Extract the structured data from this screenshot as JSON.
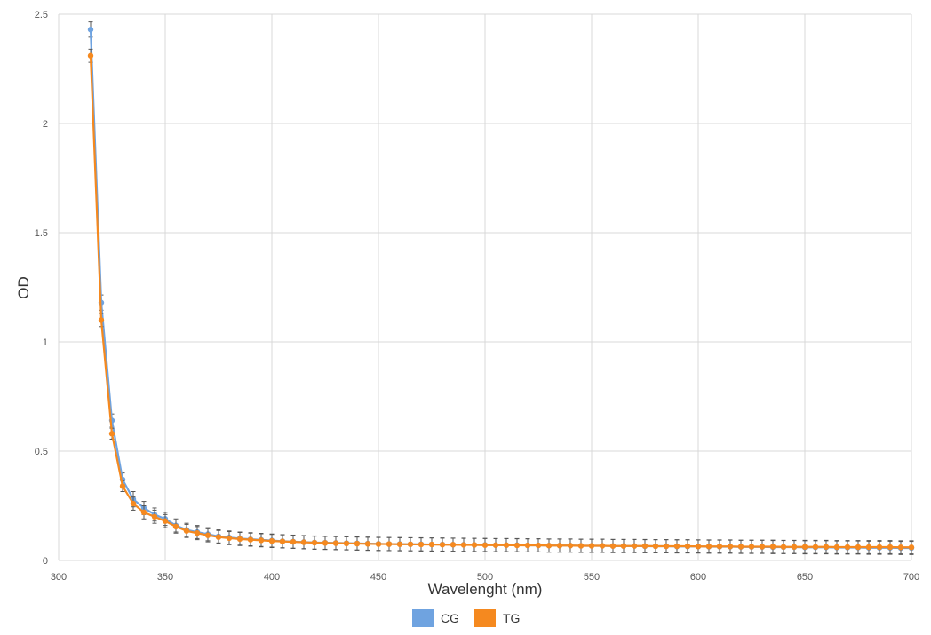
{
  "chart_data": {
    "type": "line",
    "title": "",
    "xlabel": "Wavelenght (nm)",
    "ylabel": "OD",
    "xlim": [
      300,
      700
    ],
    "ylim": [
      0,
      2.5
    ],
    "x_ticks": [
      "300",
      "350",
      "400",
      "450",
      "500",
      "550",
      "600",
      "650",
      "700"
    ],
    "y_ticks": [
      "0",
      "0.5",
      "1",
      "1.5",
      "2",
      "2.5"
    ],
    "grid": true,
    "legend_position": "bottom",
    "x": [
      315,
      320,
      325,
      330,
      335,
      340,
      345,
      350,
      355,
      360,
      365,
      370,
      375,
      380,
      385,
      390,
      395,
      400,
      405,
      410,
      415,
      420,
      425,
      430,
      435,
      440,
      445,
      450,
      455,
      460,
      465,
      470,
      475,
      480,
      485,
      490,
      495,
      500,
      505,
      510,
      515,
      520,
      525,
      530,
      535,
      540,
      545,
      550,
      555,
      560,
      565,
      570,
      575,
      580,
      585,
      590,
      595,
      600,
      605,
      610,
      615,
      620,
      625,
      630,
      635,
      640,
      645,
      650,
      655,
      660,
      665,
      670,
      675,
      680,
      685,
      690,
      695,
      700
    ],
    "series": [
      {
        "name": "CG",
        "color": "#6fa3e0",
        "values": [
          2.43,
          1.18,
          0.64,
          0.37,
          0.28,
          0.24,
          0.21,
          0.19,
          0.16,
          0.14,
          0.13,
          0.12,
          0.11,
          0.105,
          0.1,
          0.097,
          0.094,
          0.091,
          0.088,
          0.086,
          0.084,
          0.082,
          0.081,
          0.08,
          0.079,
          0.078,
          0.077,
          0.076,
          0.075,
          0.075,
          0.074,
          0.074,
          0.073,
          0.073,
          0.072,
          0.072,
          0.071,
          0.071,
          0.07,
          0.07,
          0.07,
          0.069,
          0.069,
          0.068,
          0.068,
          0.068,
          0.067,
          0.067,
          0.067,
          0.066,
          0.066,
          0.066,
          0.065,
          0.065,
          0.065,
          0.064,
          0.064,
          0.064,
          0.063,
          0.063,
          0.063,
          0.062,
          0.062,
          0.062,
          0.061,
          0.061,
          0.061,
          0.06,
          0.06,
          0.06,
          0.059,
          0.059,
          0.059,
          0.058,
          0.058,
          0.058,
          0.057,
          0.057
        ],
        "error": [
          0.035,
          0.035,
          0.03,
          0.03,
          0.035,
          0.03,
          0.03,
          0.03,
          0.03,
          0.03,
          0.03,
          0.03,
          0.03,
          0.03,
          0.03,
          0.03,
          0.03,
          0.03,
          0.03,
          0.03,
          0.03,
          0.03,
          0.03,
          0.03,
          0.03,
          0.03,
          0.03,
          0.03,
          0.03,
          0.03,
          0.03,
          0.03,
          0.03,
          0.03,
          0.03,
          0.03,
          0.03,
          0.03,
          0.03,
          0.03,
          0.03,
          0.03,
          0.03,
          0.03,
          0.03,
          0.03,
          0.03,
          0.03,
          0.03,
          0.03,
          0.03,
          0.03,
          0.03,
          0.03,
          0.03,
          0.03,
          0.03,
          0.03,
          0.03,
          0.03,
          0.03,
          0.03,
          0.03,
          0.03,
          0.03,
          0.03,
          0.03,
          0.03,
          0.03,
          0.03,
          0.03,
          0.03,
          0.03,
          0.03,
          0.03,
          0.03,
          0.03,
          0.03
        ]
      },
      {
        "name": "TG",
        "color": "#f5891f",
        "values": [
          2.31,
          1.1,
          0.58,
          0.34,
          0.26,
          0.22,
          0.2,
          0.18,
          0.155,
          0.135,
          0.125,
          0.115,
          0.107,
          0.102,
          0.098,
          0.095,
          0.092,
          0.089,
          0.087,
          0.085,
          0.083,
          0.081,
          0.08,
          0.079,
          0.078,
          0.077,
          0.076,
          0.075,
          0.075,
          0.074,
          0.074,
          0.073,
          0.073,
          0.072,
          0.072,
          0.071,
          0.071,
          0.07,
          0.07,
          0.07,
          0.069,
          0.069,
          0.069,
          0.068,
          0.068,
          0.068,
          0.067,
          0.067,
          0.067,
          0.066,
          0.066,
          0.066,
          0.066,
          0.065,
          0.065,
          0.065,
          0.065,
          0.064,
          0.064,
          0.064,
          0.064,
          0.063,
          0.063,
          0.063,
          0.063,
          0.062,
          0.062,
          0.062,
          0.062,
          0.062,
          0.061,
          0.061,
          0.061,
          0.061,
          0.061,
          0.061,
          0.06,
          0.06
        ],
        "error": [
          0.03,
          0.03,
          0.025,
          0.025,
          0.03,
          0.03,
          0.03,
          0.03,
          0.03,
          0.03,
          0.03,
          0.03,
          0.03,
          0.03,
          0.03,
          0.03,
          0.03,
          0.03,
          0.03,
          0.03,
          0.03,
          0.03,
          0.03,
          0.03,
          0.03,
          0.03,
          0.03,
          0.03,
          0.03,
          0.03,
          0.03,
          0.03,
          0.03,
          0.03,
          0.03,
          0.03,
          0.03,
          0.03,
          0.03,
          0.03,
          0.03,
          0.03,
          0.03,
          0.03,
          0.03,
          0.03,
          0.03,
          0.03,
          0.03,
          0.03,
          0.03,
          0.03,
          0.03,
          0.03,
          0.03,
          0.03,
          0.03,
          0.03,
          0.03,
          0.03,
          0.03,
          0.03,
          0.03,
          0.03,
          0.03,
          0.03,
          0.03,
          0.03,
          0.03,
          0.03,
          0.03,
          0.03,
          0.03,
          0.03,
          0.03,
          0.03,
          0.03,
          0.03
        ]
      }
    ]
  }
}
